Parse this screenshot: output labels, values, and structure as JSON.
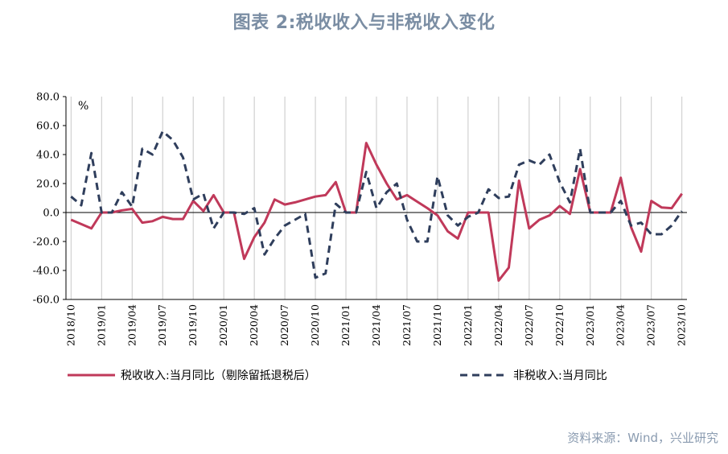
{
  "title": "图表 2:税收收入与非税收入变化",
  "source": "资料来源：Wind，兴业研究",
  "colors": {
    "tax": "#c0395a",
    "nontax": "#2f3e5c",
    "title": "#7a8da3"
  },
  "chart_data": {
    "type": "line",
    "title": "图表 2:税收收入与非税收入变化",
    "unit_label": "%",
    "ylim": [
      -60,
      80
    ],
    "yticks": [
      -60,
      -40,
      -20,
      0,
      20,
      40,
      60,
      80
    ],
    "ytick_labels": [
      "-60.0",
      "-40.0",
      "-20.0",
      "0.0",
      "20.0",
      "40.0",
      "60.0",
      "80.0"
    ],
    "x_tick_labels": [
      "2018/10",
      "2019/01",
      "2019/04",
      "2019/07",
      "2019/10",
      "2020/01",
      "2020/04",
      "2020/07",
      "2020/10",
      "2021/01",
      "2021/04",
      "2021/07",
      "2021/10",
      "2022/01",
      "2022/04",
      "2022/07",
      "2022/10",
      "2023/01",
      "2023/04",
      "2023/07",
      "2023/10"
    ],
    "x": [
      "2018/10",
      "2018/11",
      "2018/12",
      "2019/01",
      "2019/02",
      "2019/03",
      "2019/04",
      "2019/05",
      "2019/06",
      "2019/07",
      "2019/08",
      "2019/09",
      "2019/10",
      "2019/11",
      "2019/12",
      "2020/01",
      "2020/02",
      "2020/03",
      "2020/04",
      "2020/05",
      "2020/06",
      "2020/07",
      "2020/08",
      "2020/09",
      "2020/10",
      "2020/11",
      "2020/12",
      "2021/01",
      "2021/02",
      "2021/03",
      "2021/04",
      "2021/05",
      "2021/06",
      "2021/07",
      "2021/08",
      "2021/09",
      "2021/10",
      "2021/11",
      "2021/12",
      "2022/01",
      "2022/02",
      "2022/03",
      "2022/04",
      "2022/05",
      "2022/06",
      "2022/07",
      "2022/08",
      "2022/09",
      "2022/10",
      "2022/11",
      "2022/12",
      "2023/01",
      "2023/02",
      "2023/03",
      "2023/04",
      "2023/05",
      "2023/06",
      "2023/07",
      "2023/08",
      "2023/09",
      "2023/10"
    ],
    "legend_position": "bottom",
    "grid": "vertical",
    "series": [
      {
        "name": "税收收入:当月同比（剔除留抵退税后）",
        "style": "solid",
        "values": [
          -5,
          -8,
          -11,
          0,
          0,
          1.5,
          2.5,
          -7,
          -6,
          -3,
          -4.5,
          -4.5,
          8,
          1,
          12,
          0,
          0,
          -32,
          -17,
          -7,
          9,
          5.5,
          7,
          9,
          11,
          12,
          21,
          0,
          0,
          48,
          33,
          20,
          9,
          12,
          7.5,
          3,
          -2,
          -13,
          -18,
          0,
          0,
          0,
          -47,
          -38,
          22,
          -11,
          -5,
          -2,
          4.5,
          -1,
          30,
          0,
          0,
          0,
          24,
          -10,
          -27,
          8,
          3.5,
          3,
          13
        ]
      },
      {
        "name": "非税收入:当月同比",
        "style": "dashed",
        "values": [
          11,
          5,
          41,
          0,
          0,
          14,
          4,
          44,
          40,
          56,
          50,
          38,
          9,
          13,
          -11,
          0,
          0,
          -1,
          3,
          -29,
          -18,
          -9,
          -5,
          -1,
          -45,
          -42,
          6,
          0,
          0,
          28,
          3,
          14,
          20,
          -5,
          -20,
          -20,
          25,
          -2,
          -9,
          -3,
          0,
          16,
          10,
          11,
          33,
          36,
          33,
          40,
          21,
          7,
          44,
          0,
          0,
          0,
          8,
          -9,
          -7,
          -15,
          -15,
          -9,
          1
        ]
      }
    ]
  }
}
